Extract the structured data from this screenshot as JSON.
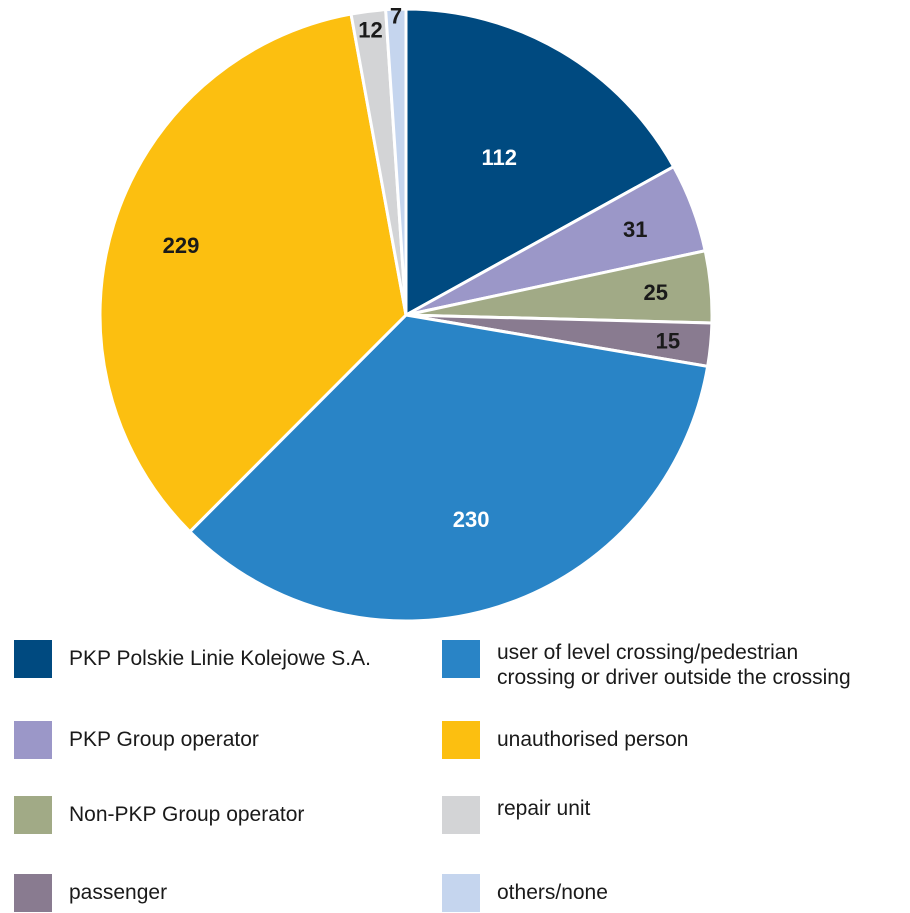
{
  "chart_data": {
    "type": "pie",
    "title": "",
    "slices": [
      {
        "label": "PKP Polskie Linie Kolejowe S.A.",
        "value": 112,
        "color": "#004a80",
        "label_color": "#ffffff"
      },
      {
        "label": "PKP Group operator",
        "value": 31,
        "color": "#9b97c8",
        "label_color": "#1a1a1a"
      },
      {
        "label": "Non-PKP Group operator",
        "value": 25,
        "color": "#a1aa86",
        "label_color": "#1a1a1a"
      },
      {
        "label": "passenger",
        "value": 15,
        "color": "#897b90",
        "label_color": "#1a1a1a"
      },
      {
        "label": "user of level crossing/pedestrian\ncrossing or driver outside the crossing",
        "value": 230,
        "color": "#2984c6",
        "label_color": "#ffffff"
      },
      {
        "label": "unauthorised person",
        "value": 229,
        "color": "#fcbf10",
        "label_color": "#1a1a1a"
      },
      {
        "label": "repair unit",
        "value": 12,
        "color": "#d3d4d6",
        "label_color": "#1a1a1a"
      },
      {
        "label": "others/none",
        "value": 7,
        "color": "#c5d5ee",
        "label_color": "#1a1a1a"
      }
    ],
    "legend_placement": "bottom"
  },
  "legend": {
    "items": [
      {
        "label": "PKP Polskie Linie Kolejowe S.A.",
        "color": "#004a80"
      },
      {
        "label": "user of level crossing/pedestrian\ncrossing or driver outside the crossing",
        "color": "#2984c6"
      },
      {
        "label": "PKP Group operator",
        "color": "#9b97c8"
      },
      {
        "label": "unauthorised person",
        "color": "#fcbf10"
      },
      {
        "label": "Non-PKP Group operator",
        "color": "#a1aa86"
      },
      {
        "label": "repair unit",
        "color": "#d3d4d6"
      },
      {
        "label": "passenger",
        "color": "#897b90"
      },
      {
        "label": "others/none",
        "color": "#c5d5ee"
      }
    ]
  }
}
